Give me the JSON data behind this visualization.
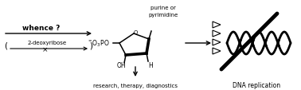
{
  "bg_color": "#ffffff",
  "text_whence": "whence ?",
  "text_deoxyribose": "2-deoxyribose",
  "text_purine": "purine or",
  "text_pyrimidine": "pyrimidine",
  "text_oh": "OH",
  "text_h": "H",
  "text_o": "O",
  "text_research": "research, therapy, diagnostics",
  "text_dna": "DNA replication",
  "lw_thin": 0.8,
  "lw_thick": 2.2,
  "lw_bold": 3.0,
  "fs_main": 6.0,
  "fs_small": 5.0,
  "fs_label": 5.5
}
